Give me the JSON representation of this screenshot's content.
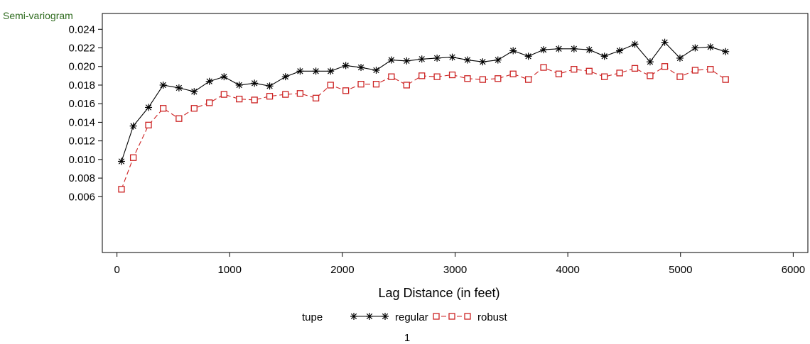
{
  "chart_data": {
    "type": "line",
    "ylabel": "Semi-variogram",
    "xlabel": "Lag Distance (in feet)",
    "xlim": [
      -130,
      6130
    ],
    "ylim": [
      0.0,
      0.0257
    ],
    "xticks": [
      0,
      1000,
      2000,
      3000,
      4000,
      5000,
      6000
    ],
    "xtick_labels": [
      "0",
      "1000",
      "2000",
      "3000",
      "4000",
      "5000",
      "6000"
    ],
    "yticks": [
      0.006,
      0.008,
      0.01,
      0.012,
      0.014,
      0.016,
      0.018,
      0.02,
      0.022,
      0.024
    ],
    "ytick_labels": [
      "0.006",
      "0.008",
      "0.010",
      "0.012",
      "0.014",
      "0.016",
      "0.018",
      "0.020",
      "0.022",
      "0.024"
    ],
    "grid": false,
    "legend_title": "tupe",
    "legend_position": "bottom",
    "footer": "1",
    "colors": {
      "ylabel": "#2e6b1e",
      "regular": "#000000",
      "robust": "#cc2222"
    },
    "series": [
      {
        "name": "regular",
        "marker": "star",
        "line": "solid",
        "x": [
          40,
          145,
          280,
          410,
          550,
          685,
          820,
          950,
          1085,
          1220,
          1355,
          1495,
          1625,
          1765,
          1895,
          2030,
          2165,
          2300,
          2435,
          2570,
          2705,
          2840,
          2975,
          3110,
          3245,
          3380,
          3515,
          3650,
          3785,
          3920,
          4055,
          4190,
          4325,
          4460,
          4595,
          4730,
          4860,
          4995,
          5130,
          5265,
          5400
        ],
        "values": [
          0.0098,
          0.0136,
          0.0156,
          0.018,
          0.0177,
          0.0173,
          0.0184,
          0.0189,
          0.018,
          0.0182,
          0.0179,
          0.0189,
          0.0195,
          0.0195,
          0.0195,
          0.0201,
          0.0199,
          0.0196,
          0.0207,
          0.0206,
          0.0208,
          0.0209,
          0.021,
          0.0207,
          0.0205,
          0.0207,
          0.0217,
          0.0211,
          0.0218,
          0.0219,
          0.0219,
          0.0218,
          0.0211,
          0.0217,
          0.0224,
          0.0205,
          0.0226,
          0.0209,
          0.022,
          0.0221,
          0.0216
        ]
      },
      {
        "name": "robust",
        "marker": "square",
        "line": "dashed",
        "x": [
          40,
          145,
          280,
          410,
          550,
          685,
          820,
          950,
          1085,
          1220,
          1355,
          1495,
          1625,
          1765,
          1895,
          2030,
          2165,
          2300,
          2435,
          2570,
          2705,
          2840,
          2975,
          3110,
          3245,
          3380,
          3515,
          3650,
          3785,
          3920,
          4055,
          4190,
          4325,
          4460,
          4595,
          4730,
          4860,
          4995,
          5130,
          5265,
          5400
        ],
        "values": [
          0.0068,
          0.0102,
          0.0137,
          0.0155,
          0.0144,
          0.0155,
          0.0161,
          0.017,
          0.0165,
          0.0164,
          0.0168,
          0.017,
          0.0171,
          0.0166,
          0.018,
          0.0174,
          0.0181,
          0.0181,
          0.0189,
          0.018,
          0.019,
          0.0189,
          0.0191,
          0.0187,
          0.0186,
          0.0187,
          0.0192,
          0.0186,
          0.0199,
          0.0192,
          0.0197,
          0.0195,
          0.0189,
          0.0193,
          0.0198,
          0.019,
          0.02,
          0.0189,
          0.0196,
          0.0197,
          0.0186
        ]
      }
    ]
  }
}
